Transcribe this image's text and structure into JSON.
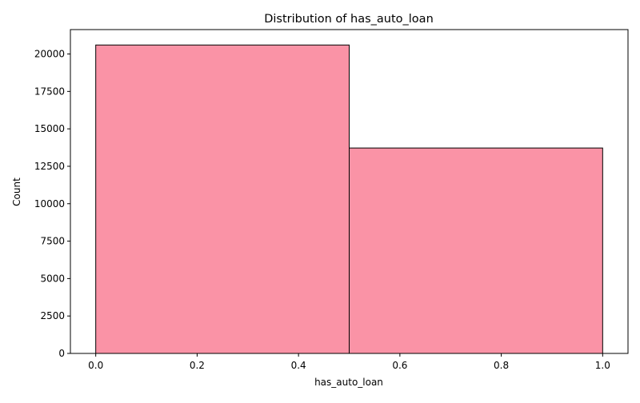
{
  "chart_data": {
    "type": "bar",
    "title": "Distribution of has_auto_loan",
    "xlabel": "has_auto_loan",
    "ylabel": "Count",
    "xlim": [
      -0.05,
      1.05
    ],
    "ylim": [
      0,
      21630
    ],
    "x_ticks": [
      0.0,
      0.2,
      0.4,
      0.6,
      0.8,
      1.0
    ],
    "x_tick_labels": [
      "0.0",
      "0.2",
      "0.4",
      "0.6",
      "0.8",
      "1.0"
    ],
    "y_ticks": [
      0,
      2500,
      5000,
      7500,
      10000,
      12500,
      15000,
      17500,
      20000
    ],
    "y_tick_labels": [
      "0",
      "2500",
      "5000",
      "7500",
      "10000",
      "12500",
      "15000",
      "17500",
      "20000"
    ],
    "bins": [
      {
        "x_start": 0.0,
        "x_end": 0.5,
        "value": 20600
      },
      {
        "x_start": 0.5,
        "x_end": 1.0,
        "value": 13720
      }
    ],
    "bar_color": "#fa93a6",
    "bar_edge_color": "#000000",
    "grid": false,
    "legend": "none"
  }
}
